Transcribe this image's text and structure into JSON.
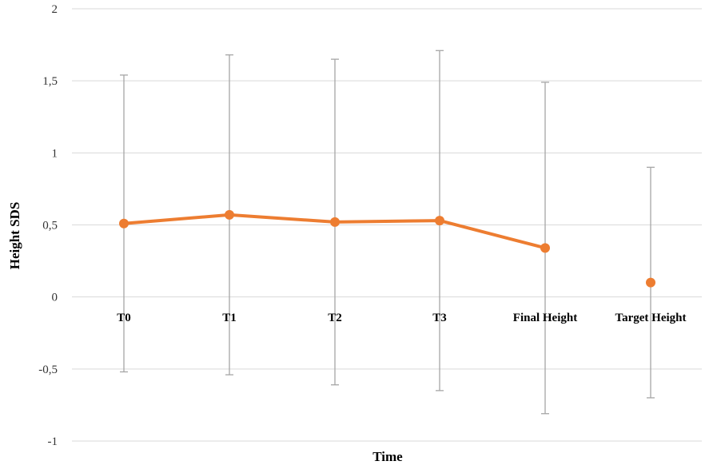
{
  "chart_data": {
    "type": "line",
    "xlabel": "Time",
    "ylabel": "Height SDS",
    "categories": [
      "T0",
      "T1",
      "T2",
      "T3",
      "Final Height",
      "Target Height"
    ],
    "ylim": [
      -1,
      2
    ],
    "yticks": [
      "-1",
      "-0,5",
      "0",
      "0,5",
      "1",
      "1,5",
      "2"
    ],
    "ytick_values": [
      -1,
      -0.5,
      0,
      0.5,
      1,
      1.5,
      2
    ],
    "grid": true,
    "series": [
      {
        "values": [
          0.51,
          0.57,
          0.52,
          0.53,
          0.34,
          0.1
        ],
        "error_upper": [
          1.54,
          1.68,
          1.65,
          1.71,
          1.49,
          0.9
        ],
        "error_lower": [
          -0.52,
          -0.54,
          -0.61,
          -0.65,
          -0.81,
          -0.7
        ],
        "line_segments": [
          [
            0,
            4
          ]
        ],
        "color": "#ed7d31",
        "error_color": "#a6a6a6"
      }
    ],
    "gridline_color": "#d9d9d9"
  }
}
